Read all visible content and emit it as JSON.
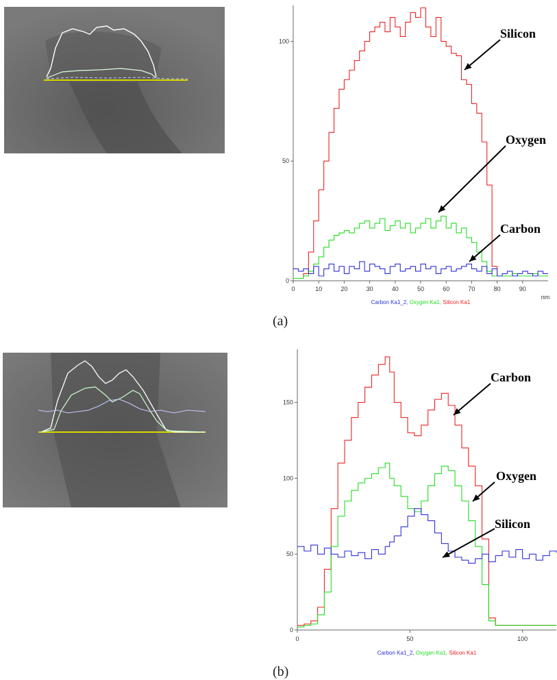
{
  "colors": {
    "carbon": "#2f2fd8",
    "oxygen": "#22dd22",
    "silicon": "#ee2222",
    "axis": "#666666",
    "sem_bg": "#6e6e6e",
    "scan_line": "#d8d800"
  },
  "chart_data": [
    {
      "type": "line",
      "panel_label": "(a)",
      "xlim": [
        0,
        100
      ],
      "ylim": [
        0,
        115
      ],
      "xticks": [
        "0",
        "10",
        "20",
        "30",
        "40",
        "50",
        "60",
        "70",
        "80",
        "90"
      ],
      "yticks": [
        "0",
        "50",
        "100"
      ],
      "xunit": "nm",
      "legend": [
        "Carbon Ka1_2",
        "Oxygen Ka1",
        "Silicon Ka1"
      ],
      "annotations": [
        "Silicon",
        "Oxygen",
        "Carbon"
      ],
      "series": [
        {
          "name": "Silicon Ka1",
          "color": "#ee2222",
          "x": [
            0,
            2,
            4,
            6,
            8,
            10,
            12,
            14,
            16,
            18,
            20,
            22,
            24,
            26,
            28,
            30,
            32,
            34,
            36,
            38,
            40,
            42,
            44,
            46,
            48,
            50,
            52,
            54,
            56,
            58,
            60,
            62,
            64,
            66,
            68,
            70,
            72,
            74,
            76,
            78,
            80,
            82,
            84,
            86,
            88,
            90,
            92,
            94,
            96,
            98,
            100
          ],
          "y": [
            1,
            1,
            3,
            12,
            25,
            38,
            50,
            62,
            72,
            80,
            84,
            88,
            92,
            96,
            100,
            104,
            106,
            108,
            104,
            110,
            106,
            102,
            108,
            112,
            110,
            114,
            106,
            102,
            110,
            100,
            98,
            95,
            94,
            84,
            82,
            74,
            70,
            58,
            40,
            6,
            2,
            2,
            2,
            2,
            2,
            2,
            2,
            2,
            2,
            2,
            2
          ]
        },
        {
          "name": "Oxygen Ka1",
          "color": "#22dd22",
          "x": [
            0,
            2,
            4,
            6,
            8,
            10,
            12,
            14,
            16,
            18,
            20,
            22,
            24,
            26,
            28,
            30,
            32,
            34,
            36,
            38,
            40,
            42,
            44,
            46,
            48,
            50,
            52,
            54,
            56,
            58,
            60,
            62,
            64,
            66,
            68,
            70,
            72,
            74,
            76,
            78,
            80,
            82,
            84,
            86,
            88,
            90,
            92,
            94,
            96,
            98,
            100
          ],
          "y": [
            1,
            1,
            2,
            4,
            7,
            10,
            14,
            17,
            19,
            20,
            21,
            20,
            22,
            24,
            25,
            22,
            24,
            26,
            21,
            23,
            25,
            22,
            24,
            20,
            22,
            24,
            26,
            22,
            25,
            27,
            22,
            24,
            20,
            22,
            18,
            16,
            12,
            8,
            4,
            2,
            2,
            2,
            2,
            3,
            2,
            2,
            2,
            3,
            2,
            2,
            2
          ]
        },
        {
          "name": "Carbon Ka1_2",
          "color": "#2f2fd8",
          "x": [
            0,
            2,
            4,
            6,
            8,
            10,
            12,
            14,
            16,
            18,
            20,
            22,
            24,
            26,
            28,
            30,
            32,
            34,
            36,
            38,
            40,
            42,
            44,
            46,
            48,
            50,
            52,
            54,
            56,
            58,
            60,
            62,
            64,
            66,
            68,
            70,
            72,
            74,
            76,
            78,
            80,
            82,
            84,
            86,
            88,
            90,
            92,
            94,
            96,
            98,
            100
          ],
          "y": [
            5,
            4,
            5,
            3,
            6,
            2,
            5,
            7,
            4,
            6,
            3,
            6,
            5,
            8,
            4,
            7,
            6,
            5,
            3,
            6,
            7,
            4,
            5,
            6,
            4,
            7,
            5,
            6,
            3,
            5,
            6,
            4,
            5,
            6,
            7,
            5,
            4,
            6,
            3,
            5,
            2,
            3,
            4,
            2,
            3,
            4,
            3,
            2,
            4,
            3,
            3
          ]
        }
      ]
    },
    {
      "type": "line",
      "panel_label": "(b)",
      "xlim": [
        0,
        115
      ],
      "ylim": [
        0,
        185
      ],
      "xticks": [
        "0",
        "50",
        "100"
      ],
      "yticks": [
        "0",
        "50",
        "100",
        "150"
      ],
      "legend": [
        "Carbon Ka1_2",
        "Oxygen Ka1",
        "Silicon Ka1"
      ],
      "annotations": [
        "Carbon",
        "Oxygen",
        "Silicon"
      ],
      "series": [
        {
          "name": "Silicon Ka1",
          "color": "#ee2222",
          "x": [
            0,
            3,
            6,
            9,
            12,
            15,
            18,
            21,
            24,
            27,
            30,
            33,
            36,
            39,
            41,
            43,
            46,
            49,
            52,
            55,
            58,
            61,
            64,
            67,
            70,
            73,
            76,
            79,
            82,
            85,
            88,
            91,
            94,
            97,
            100,
            103,
            106,
            109,
            112,
            115
          ],
          "y": [
            3,
            4,
            6,
            15,
            40,
            80,
            110,
            125,
            140,
            150,
            160,
            168,
            175,
            180,
            170,
            150,
            140,
            130,
            128,
            135,
            145,
            152,
            156,
            148,
            135,
            120,
            108,
            95,
            60,
            8,
            3,
            3,
            3,
            3,
            3,
            3,
            3,
            3,
            3,
            3
          ]
        },
        {
          "name": "Oxygen Ka1",
          "color": "#22dd22",
          "x": [
            0,
            3,
            6,
            9,
            12,
            15,
            18,
            21,
            24,
            27,
            30,
            33,
            36,
            39,
            41,
            43,
            46,
            49,
            52,
            55,
            58,
            61,
            64,
            67,
            70,
            73,
            76,
            79,
            82,
            85,
            88,
            91,
            94,
            97,
            100,
            103,
            106,
            109,
            112,
            115
          ],
          "y": [
            2,
            3,
            4,
            10,
            25,
            55,
            75,
            85,
            92,
            97,
            100,
            103,
            107,
            110,
            100,
            95,
            88,
            80,
            78,
            85,
            95,
            103,
            108,
            105,
            95,
            85,
            72,
            55,
            30,
            6,
            3,
            3,
            3,
            3,
            3,
            3,
            3,
            3,
            3,
            3
          ]
        },
        {
          "name": "Carbon Ka1_2",
          "color": "#2f2fd8",
          "x": [
            0,
            3,
            6,
            9,
            12,
            15,
            18,
            21,
            24,
            27,
            30,
            33,
            36,
            39,
            41,
            43,
            46,
            49,
            52,
            55,
            58,
            61,
            64,
            67,
            70,
            73,
            76,
            79,
            82,
            85,
            88,
            91,
            94,
            97,
            100,
            103,
            106,
            109,
            112,
            115
          ],
          "y": [
            55,
            52,
            56,
            50,
            54,
            50,
            48,
            52,
            49,
            51,
            47,
            53,
            50,
            55,
            58,
            62,
            68,
            75,
            80,
            76,
            72,
            64,
            57,
            52,
            48,
            46,
            44,
            47,
            50,
            45,
            49,
            52,
            48,
            53,
            47,
            50,
            46,
            49,
            52,
            51
          ]
        }
      ]
    }
  ]
}
